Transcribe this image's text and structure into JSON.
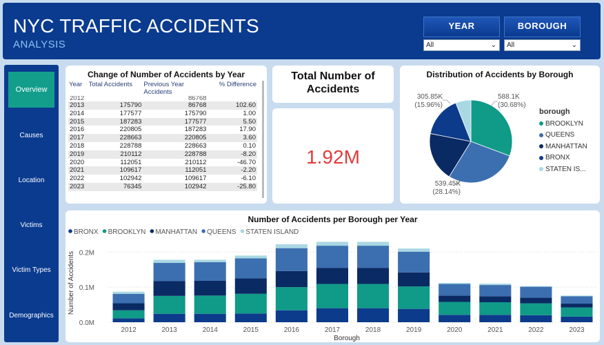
{
  "header": {
    "title": "NYC TRAFFIC ACCIDENTS",
    "subtitle": "ANALYSIS"
  },
  "slicers": [
    {
      "label": "YEAR",
      "value": "All"
    },
    {
      "label": "BOROUGH",
      "value": "All"
    }
  ],
  "nav": {
    "overview": "Overview",
    "causes": "Causes",
    "location": "Location",
    "victims": "Victims",
    "victim_types": "Victim Types",
    "demographics": "Demographics"
  },
  "table": {
    "title": "Change of Number of Accidents by Year",
    "headers": [
      "Year",
      "Total Accidents",
      "Previous Year Accidents",
      "% Difference"
    ],
    "partial_row": [
      "2012",
      "",
      "",
      "86768"
    ],
    "rows": [
      [
        "2013",
        "175790",
        "86768",
        "102.60"
      ],
      [
        "2014",
        "177577",
        "175790",
        "1.00"
      ],
      [
        "2015",
        "187283",
        "177577",
        "5.50"
      ],
      [
        "2016",
        "220805",
        "187283",
        "17.90"
      ],
      [
        "2017",
        "228663",
        "220805",
        "3.60"
      ],
      [
        "2018",
        "228788",
        "228663",
        "0.10"
      ],
      [
        "2019",
        "210112",
        "228788",
        "-8.20"
      ],
      [
        "2020",
        "112051",
        "210112",
        "-46.70"
      ],
      [
        "2021",
        "109617",
        "112051",
        "-2.20"
      ],
      [
        "2022",
        "102942",
        "109617",
        "-6.10"
      ],
      [
        "2023",
        "76345",
        "102942",
        "-25.80"
      ]
    ]
  },
  "kpi": {
    "title": "Total Number of Accidents",
    "value": "1.92M"
  },
  "colors": {
    "brooklyn": "#109a88",
    "queens": "#3c6fb0",
    "manhattan": "#0a2a63",
    "bronx": "#0d3b8c",
    "staten": "#a9d8e3"
  },
  "pie": {
    "title": "Distribution of Accidents by Borough",
    "legend_title": "borough",
    "legend": [
      "BROOKLYN",
      "QUEENS",
      "MANHATTAN",
      "BRONX",
      "STATEN IS..."
    ],
    "labels": {
      "brooklyn": [
        "588.1K",
        "(30.68%)"
      ],
      "bronx": [
        "305.85K",
        "(15.96%)"
      ],
      "queens": [
        "539.45K",
        "(28.14%)"
      ]
    }
  },
  "chart_data": {
    "type": "bar",
    "title": "Number of Accidents per Borough per Year",
    "xlabel": "Borough",
    "ylabel": "Number of Accidents",
    "legend_placement": "top-left",
    "categories": [
      "2012",
      "2013",
      "2014",
      "2015",
      "2016",
      "2017",
      "2018",
      "2019",
      "2020",
      "2021",
      "2022",
      "2023"
    ],
    "yticks": [
      "0.0M",
      "0.1M",
      "0.2M"
    ],
    "ylim": [
      0,
      0.23
    ],
    "stacked": true,
    "series": [
      {
        "name": "BRONX",
        "values": [
          0.011,
          0.024,
          0.024,
          0.025,
          0.034,
          0.04,
          0.04,
          0.038,
          0.021,
          0.021,
          0.02,
          0.016
        ]
      },
      {
        "name": "BROOKLYN",
        "values": [
          0.023,
          0.051,
          0.052,
          0.056,
          0.066,
          0.069,
          0.069,
          0.064,
          0.037,
          0.036,
          0.034,
          0.026
        ]
      },
      {
        "name": "MANHATTAN",
        "values": [
          0.02,
          0.042,
          0.042,
          0.044,
          0.046,
          0.046,
          0.046,
          0.04,
          0.018,
          0.017,
          0.016,
          0.011
        ]
      },
      {
        "name": "QUEENS",
        "values": [
          0.027,
          0.052,
          0.053,
          0.057,
          0.065,
          0.063,
          0.063,
          0.059,
          0.033,
          0.032,
          0.031,
          0.021
        ]
      },
      {
        "name": "STATEN ISLAND",
        "values": [
          0.006,
          0.009,
          0.007,
          0.008,
          0.011,
          0.011,
          0.011,
          0.009,
          0.003,
          0.004,
          0.002,
          0.002
        ]
      }
    ]
  }
}
